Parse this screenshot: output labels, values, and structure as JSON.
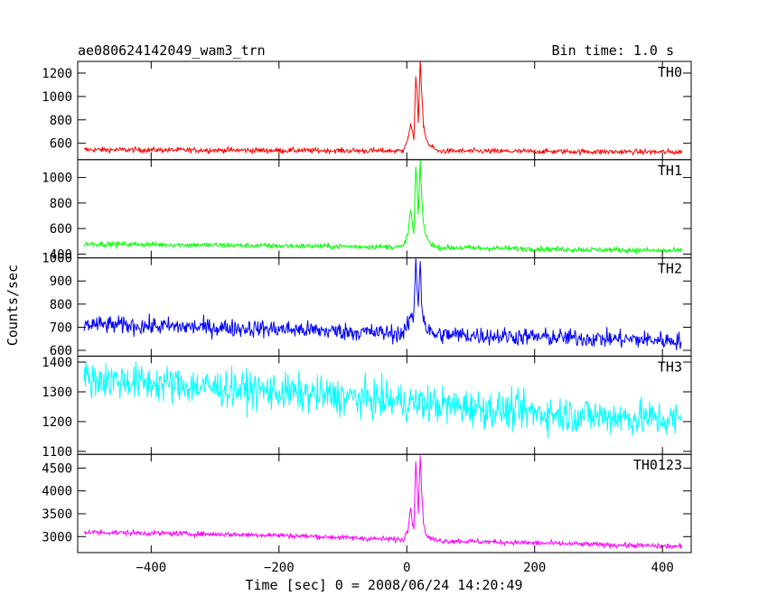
{
  "chart_data": {
    "type": "line",
    "title": "ae080624142049_wam3_trn",
    "bin_time": "Bin time: 1.0 s",
    "xlabel": "Time [sec] 0 = 2008/06/24 14:20:49",
    "ylabel": "Counts/sec",
    "xlim": [
      -515,
      445
    ],
    "xticks": [
      -400,
      -200,
      0,
      200,
      400
    ],
    "xtick_labels": [
      "−400",
      "−200",
      "0",
      "200",
      "400"
    ],
    "x_start": -505,
    "x_end": 430,
    "panels": [
      {
        "name": "TH0",
        "color": "#ff0000",
        "ylim": [
          460,
          1300
        ],
        "yticks": [
          600,
          800,
          1000,
          1200
        ],
        "ytick_labels": [
          "600",
          "800",
          "1000",
          "1200"
        ],
        "baseline": [
          [
            -505,
            545
          ],
          [
            0,
            535
          ],
          [
            430,
            525
          ]
        ],
        "noise": 22,
        "burst": [
          [
            -5,
            560
          ],
          [
            2,
            640
          ],
          [
            6,
            760
          ],
          [
            9,
            680
          ],
          [
            11,
            640
          ],
          [
            14,
            1170
          ],
          [
            16,
            1060
          ],
          [
            18,
            760
          ],
          [
            21,
            1300
          ],
          [
            23,
            1060
          ],
          [
            26,
            760
          ],
          [
            30,
            640
          ],
          [
            36,
            580
          ],
          [
            45,
            550
          ]
        ]
      },
      {
        "name": "TH1",
        "color": "#00ff00",
        "ylim": [
          370,
          1140
        ],
        "yticks": [
          400,
          600,
          800,
          1000
        ],
        "ytick_labels": [
          "400",
          "600",
          "800",
          "1000"
        ],
        "baseline": [
          [
            -505,
            480
          ],
          [
            0,
            455
          ],
          [
            430,
            425
          ]
        ],
        "noise": 20,
        "burst": [
          [
            -5,
            470
          ],
          [
            2,
            560
          ],
          [
            6,
            760
          ],
          [
            9,
            620
          ],
          [
            11,
            560
          ],
          [
            14,
            1080
          ],
          [
            16,
            940
          ],
          [
            18,
            680
          ],
          [
            21,
            1140
          ],
          [
            23,
            880
          ],
          [
            26,
            640
          ],
          [
            30,
            540
          ],
          [
            36,
            490
          ],
          [
            45,
            460
          ]
        ]
      },
      {
        "name": "TH2",
        "color": "#0000ff",
        "ylim": [
          575,
          1000
        ],
        "yticks": [
          600,
          700,
          800,
          900,
          1000
        ],
        "ytick_labels": [
          "600",
          "700",
          "800",
          "900",
          "1000"
        ],
        "baseline": [
          [
            -505,
            712
          ],
          [
            -200,
            692
          ],
          [
            0,
            672
          ],
          [
            430,
            642
          ]
        ],
        "noise": 38,
        "burst": [
          [
            -5,
            680
          ],
          [
            2,
            700
          ],
          [
            6,
            760
          ],
          [
            9,
            720
          ],
          [
            11,
            760
          ],
          [
            14,
            1000
          ],
          [
            16,
            880
          ],
          [
            18,
            800
          ],
          [
            21,
            1000
          ],
          [
            23,
            820
          ],
          [
            26,
            740
          ],
          [
            30,
            700
          ],
          [
            36,
            680
          ],
          [
            45,
            665
          ]
        ]
      },
      {
        "name": "TH3",
        "color": "#00ffff",
        "ylim": [
          1090,
          1420
        ],
        "yticks": [
          1100,
          1200,
          1300,
          1400
        ],
        "ytick_labels": [
          "1100",
          "1200",
          "1300",
          "1400"
        ],
        "baseline": [
          [
            -505,
            1345
          ],
          [
            -200,
            1300
          ],
          [
            0,
            1265
          ],
          [
            200,
            1230
          ],
          [
            430,
            1205
          ]
        ],
        "noise": 62,
        "burst": []
      },
      {
        "name": "TH0123",
        "color": "#ff00ff",
        "ylim": [
          2650,
          4800
        ],
        "yticks": [
          3000,
          3500,
          4000,
          4500
        ],
        "ytick_labels": [
          "3000",
          "3500",
          "4000",
          "4500"
        ],
        "baseline": [
          [
            -505,
            3100
          ],
          [
            -200,
            3030
          ],
          [
            0,
            2930
          ],
          [
            200,
            2860
          ],
          [
            430,
            2780
          ]
        ],
        "noise": 55,
        "burst": [
          [
            -5,
            2950
          ],
          [
            2,
            3150
          ],
          [
            6,
            3700
          ],
          [
            9,
            3300
          ],
          [
            11,
            3200
          ],
          [
            14,
            4620
          ],
          [
            16,
            4200
          ],
          [
            18,
            3500
          ],
          [
            21,
            4800
          ],
          [
            23,
            4100
          ],
          [
            26,
            3300
          ],
          [
            30,
            3050
          ],
          [
            36,
            2960
          ],
          [
            45,
            2930
          ]
        ]
      }
    ]
  }
}
